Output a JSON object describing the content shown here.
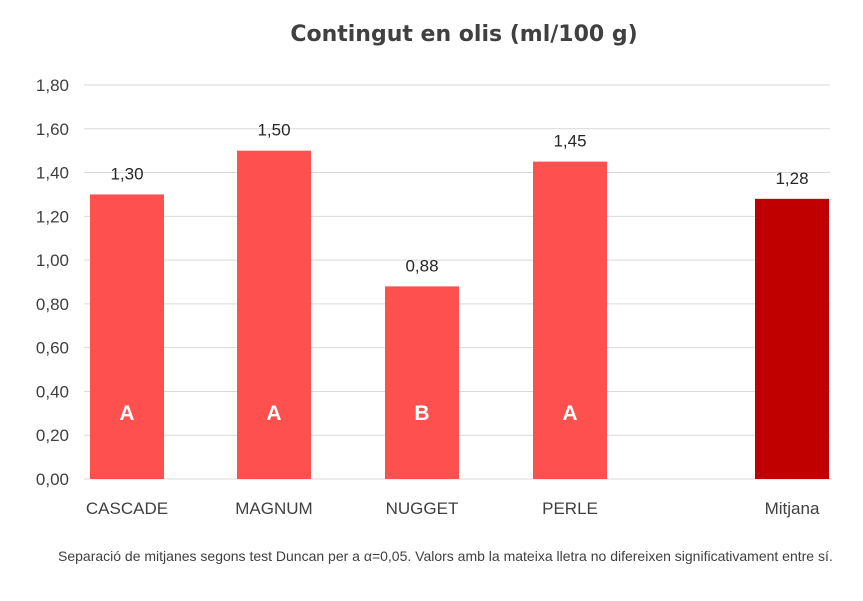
{
  "chart_data": {
    "type": "bar",
    "title": "Contingut en olis  (ml/100 g)",
    "categories": [
      "CASCADE",
      "MAGNUM",
      "NUGGET",
      "PERLE",
      "Mitjana"
    ],
    "values": [
      1.3,
      1.5,
      0.88,
      1.45,
      1.28
    ],
    "data_labels": [
      "1,30",
      "1,50",
      "0,88",
      "1,45",
      "1,28"
    ],
    "group_letters": [
      "A",
      "A",
      "B",
      "A",
      ""
    ],
    "ylim": [
      0,
      1.8
    ],
    "yticks": [
      "0,00",
      "0,20",
      "0,40",
      "0,60",
      "0,80",
      "1,00",
      "1,20",
      "1,40",
      "1,60",
      "1,80"
    ],
    "ytick_values": [
      0,
      0.2,
      0.4,
      0.6,
      0.8,
      1.0,
      1.2,
      1.4,
      1.6,
      1.8
    ],
    "grid": true,
    "colors": {
      "bar": "#ff5050",
      "mean_bar": "#c00000"
    },
    "xlabel": "",
    "ylabel": ""
  },
  "footnote": "Separació de mitjanes segons test Duncan per a α=0,05. Valors amb la mateixa lletra no difereixen significativament entre sí."
}
